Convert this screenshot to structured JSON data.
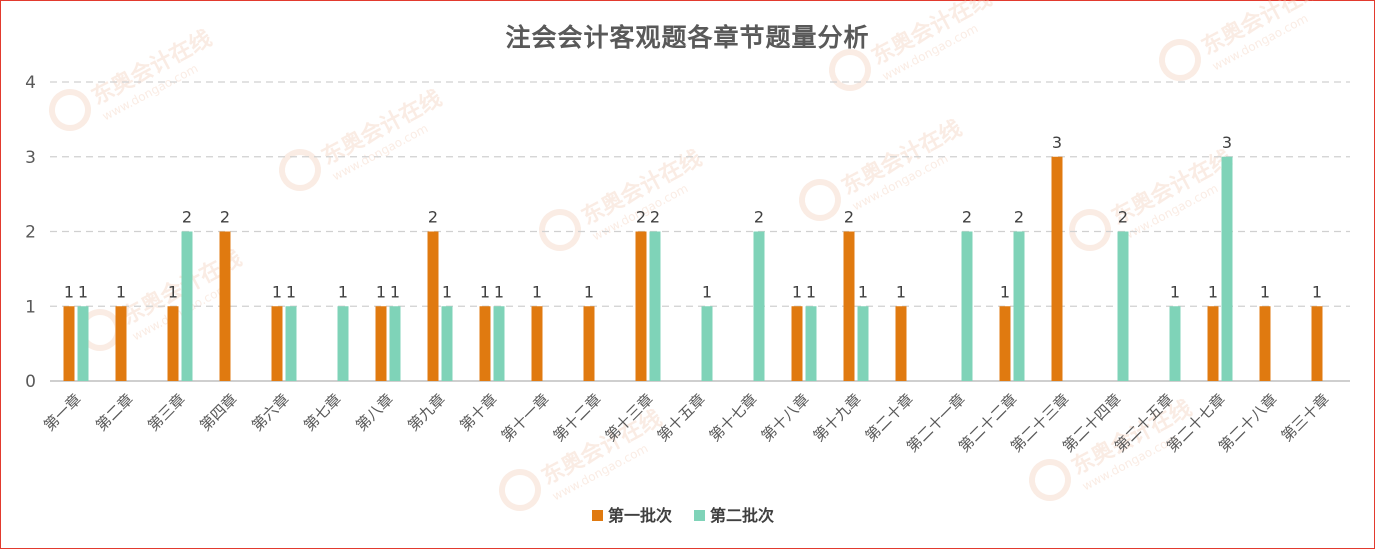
{
  "chart_data": {
    "type": "bar",
    "title": "注会会计客观题各章节题量分析",
    "xlabel": "",
    "ylabel": "",
    "ylim": [
      0,
      4
    ],
    "yticks": [
      0,
      1,
      2,
      3,
      4
    ],
    "grid": "horizontal-dashed",
    "legend_position": "bottom",
    "categories": [
      "第一章",
      "第二章",
      "第三章",
      "第四章",
      "第六章",
      "第七章",
      "第八章",
      "第九章",
      "第十章",
      "第十一章",
      "第十二章",
      "第十三章",
      "第十五章",
      "第十七章",
      "第十八章",
      "第十九章",
      "第二十章",
      "第二十一章",
      "第二十二章",
      "第二十三章",
      "第二十四章",
      "第二十五章",
      "第二十七章",
      "第二十八章",
      "第三十章"
    ],
    "series": [
      {
        "name": "第一批次",
        "color": "#e07a10",
        "values": [
          1,
          1,
          1,
          2,
          1,
          null,
          1,
          2,
          1,
          1,
          1,
          2,
          null,
          null,
          1,
          2,
          1,
          null,
          1,
          3,
          null,
          null,
          1,
          1,
          1
        ]
      },
      {
        "name": "第二批次",
        "color": "#7fd3b8",
        "values": [
          1,
          null,
          2,
          null,
          1,
          1,
          1,
          1,
          1,
          null,
          null,
          2,
          1,
          2,
          1,
          1,
          null,
          2,
          2,
          null,
          2,
          1,
          3,
          null,
          null
        ]
      }
    ]
  },
  "watermark": {
    "brand": "东奥会计在线",
    "url": "www.dongao.com",
    "color": "#f2c9b3"
  }
}
